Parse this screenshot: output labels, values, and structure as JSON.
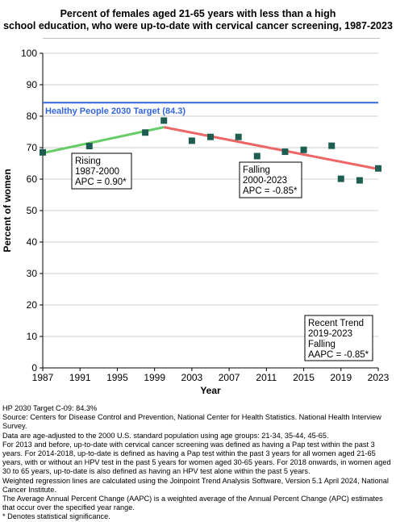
{
  "title_lines": [
    "Percent of females aged 21-65 years with less than a high",
    "school education, who were up-to-date with cervical cancer screening, 1987-2023"
  ],
  "chart_data": {
    "type": "scatter",
    "xlabel": "Year",
    "ylabel": "Percent of women",
    "xlim": [
      1987,
      2023
    ],
    "ylim": [
      0,
      100
    ],
    "xticks": [
      1987,
      1991,
      1995,
      1999,
      2003,
      2007,
      2011,
      2015,
      2019,
      2023
    ],
    "yticks": [
      0,
      10,
      20,
      30,
      40,
      50,
      60,
      70,
      80,
      90,
      100
    ],
    "grid": "horizontal",
    "points": {
      "x": [
        1987,
        1992,
        1998,
        2000,
        2003,
        2005,
        2008,
        2010,
        2013,
        2015,
        2018,
        2019,
        2021,
        2023
      ],
      "y": [
        68.5,
        70.5,
        74.8,
        78.6,
        72.2,
        73.4,
        73.4,
        67.3,
        68.7,
        69.3,
        70.6,
        60.1,
        59.6,
        63.4
      ]
    },
    "point_color": "#1e5e52",
    "trend_segments": [
      {
        "label": "Rising",
        "x": [
          1987,
          2000
        ],
        "y": [
          68.3,
          76.5
        ],
        "color": "#66cc66"
      },
      {
        "label": "Falling",
        "x": [
          2000,
          2023
        ],
        "y": [
          76.5,
          63.2
        ],
        "color": "#ee6666"
      }
    ],
    "target": {
      "value": 84.3,
      "label": "Healthy People 2030 Target (84.3)",
      "color": "#3366dd"
    },
    "annotations": [
      {
        "lines": [
          "Rising",
          "1987-2000",
          "APC =  0.90*"
        ]
      },
      {
        "lines": [
          "Falling",
          "2000-2023",
          "APC = -0.85*"
        ]
      },
      {
        "lines": [
          "Recent Trend",
          "2019-2023",
          "Falling",
          "AAPC = -0.85*"
        ]
      }
    ]
  },
  "footnotes": [
    "HP 2030 Target C-09: 84.3%",
    "Source: Centers for Disease Control and Prevention, National Center for Health Statistics. National Health Interview Survey.",
    "Data are age-adjusted to the 2000 U.S. standard population using age groups: 21-34, 35-44, 45-65.",
    "For 2013 and before, up-to-date with cervical cancer screening was defined as having a Pap test within the past 3 years. For 2014-2018, up-to-date is defined as having a Pap test within the past 3 years for all women aged 21-65 years, with or without an HPV test in the past 5 years for women aged 30-65 years.  For 2018 onwards, in women aged 30 to 65 years, up-to-date is also defined as having an HPV test alone within the past 5 years.",
    "Weighted regression lines are calculated using the Joinpoint Trend Analysis Software, Version 5.1 April 2024, National Cancer Institute.",
    "The Average Annual Percent Change (AAPC) is a weighted average of the Annual Percent Change (APC) estimates that occur over the specified year range.",
    "* Denotes statistical significance."
  ]
}
